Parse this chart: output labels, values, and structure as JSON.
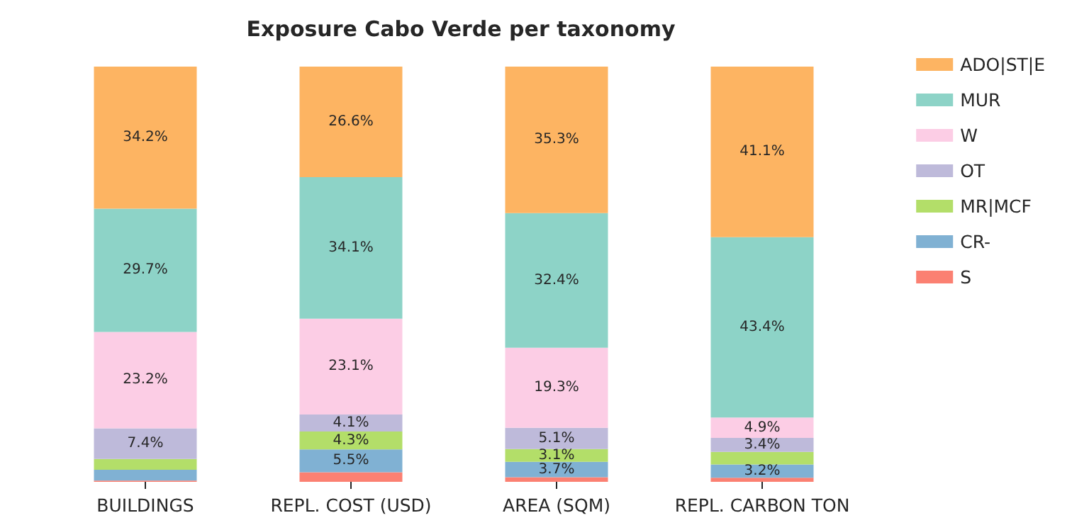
{
  "chart_data": {
    "type": "bar",
    "title": "Exposure Cabo Verde per taxonomy",
    "stacked": true,
    "legend": "top right",
    "grid": false,
    "tick_labels": "x",
    "categories": [
      "BUILDINGS",
      "REPL. COST (USD)",
      "AREA (SQM)",
      "REPL. CARBON TON"
    ],
    "series": [
      {
        "name": "S",
        "color": "#fb8072",
        "values": [
          0.3,
          2.3,
          1.1,
          1.0
        ],
        "value_labels": [
          null,
          null,
          null,
          null
        ]
      },
      {
        "name": "CR-",
        "color": "#80b1d3",
        "values": [
          2.6,
          5.5,
          3.7,
          3.2
        ],
        "value_labels": [
          null,
          "5.5%",
          "3.7%",
          "3.2%"
        ]
      },
      {
        "name": "MR|MCF",
        "color": "#b3de69",
        "values": [
          2.6,
          4.3,
          3.1,
          3.0
        ],
        "value_labels": [
          null,
          "4.3%",
          "3.1%",
          null
        ]
      },
      {
        "name": "OT",
        "color": "#bebada",
        "values": [
          7.4,
          4.1,
          5.1,
          3.4
        ],
        "value_labels": [
          "7.4%",
          "4.1%",
          "5.1%",
          "3.4%"
        ]
      },
      {
        "name": "W",
        "color": "#fccde5",
        "values": [
          23.2,
          23.1,
          19.3,
          4.9
        ],
        "value_labels": [
          "23.2%",
          "23.1%",
          "19.3%",
          "4.9%"
        ]
      },
      {
        "name": "MUR",
        "color": "#8dd3c7",
        "values": [
          29.7,
          34.1,
          32.4,
          43.4
        ],
        "value_labels": [
          "29.7%",
          "34.1%",
          "32.4%",
          "43.4%"
        ]
      },
      {
        "name": "ADO|ST|E",
        "color": "#fdb462",
        "values": [
          34.2,
          26.6,
          35.3,
          41.1
        ],
        "value_labels": [
          "34.2%",
          "26.6%",
          "35.3%",
          "41.1%"
        ]
      }
    ]
  }
}
